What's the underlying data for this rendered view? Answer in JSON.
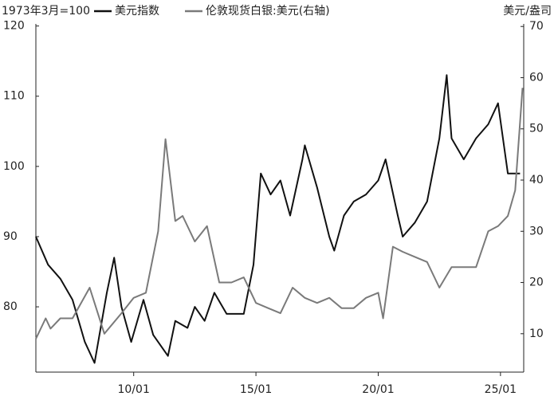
{
  "chart_data": {
    "type": "line",
    "ylabel": "1973年3月=100",
    "y2label": "美元/盎司",
    "xlim": [
      2006,
      2025.95
    ],
    "xticks": [
      {
        "value": 2010,
        "label": "10/01"
      },
      {
        "value": 2015,
        "label": "15/01"
      },
      {
        "value": 2020,
        "label": "20/01"
      },
      {
        "value": 2025,
        "label": "25/01"
      }
    ],
    "ylim": [
      70.7,
      120.3
    ],
    "yticks": [
      80,
      90,
      100,
      110,
      120
    ],
    "y2lim": [
      2.5,
      70.5
    ],
    "y2ticks": [
      10,
      20,
      30,
      40,
      50,
      60,
      70
    ],
    "series": [
      {
        "name": "美元指数",
        "color": "#111111",
        "x": [
          2006.0,
          2006.5,
          2007.0,
          2007.5,
          2008.0,
          2008.4,
          2008.9,
          2009.2,
          2009.5,
          2009.9,
          2010.4,
          2010.8,
          2011.4,
          2011.7,
          2012.2,
          2012.5,
          2012.9,
          2013.3,
          2013.8,
          2014.5,
          2014.9,
          2015.2,
          2015.6,
          2016.0,
          2016.4,
          2016.9,
          2017.0,
          2017.5,
          2018.0,
          2018.2,
          2018.6,
          2019.0,
          2019.5,
          2020.0,
          2020.3,
          2020.8,
          2021.0,
          2021.5,
          2022.0,
          2022.5,
          2022.8,
          2023.0,
          2023.5,
          2024.0,
          2024.5,
          2024.9,
          2025.3,
          2025.8
        ],
        "values": [
          90,
          86,
          84,
          81,
          75,
          72,
          82,
          87,
          80,
          75,
          81,
          76,
          73,
          78,
          77,
          80,
          78,
          82,
          79,
          79,
          86,
          99,
          96,
          98,
          93,
          101,
          103,
          97,
          90,
          88,
          93,
          95,
          96,
          98,
          101,
          93,
          90,
          92,
          95,
          104,
          113,
          104,
          101,
          104,
          106,
          109,
          99,
          99
        ]
      },
      {
        "name": "伦敦现货白银:美元(右轴)",
        "color": "#7a7a7a",
        "axis": "y2",
        "x": [
          2006.0,
          2006.4,
          2006.6,
          2007.0,
          2007.5,
          2008.2,
          2008.8,
          2009.5,
          2010.0,
          2010.5,
          2011.0,
          2011.3,
          2011.7,
          2012.0,
          2012.5,
          2013.0,
          2013.5,
          2014.0,
          2014.5,
          2015.0,
          2015.5,
          2016.0,
          2016.5,
          2017.0,
          2017.5,
          2018.0,
          2018.5,
          2019.0,
          2019.5,
          2020.0,
          2020.2,
          2020.6,
          2021.0,
          2021.5,
          2022.0,
          2022.5,
          2023.0,
          2023.5,
          2024.0,
          2024.5,
          2024.9,
          2025.3,
          2025.6,
          2025.9
        ],
        "values": [
          9,
          13,
          11,
          13,
          13,
          19,
          10,
          14,
          17,
          18,
          30,
          48,
          32,
          33,
          28,
          31,
          20,
          20,
          21,
          16,
          15,
          14,
          19,
          17,
          16,
          17,
          15,
          15,
          17,
          18,
          13,
          27,
          26,
          25,
          24,
          19,
          23,
          23,
          23,
          30,
          31,
          33,
          38,
          58
        ]
      }
    ]
  }
}
